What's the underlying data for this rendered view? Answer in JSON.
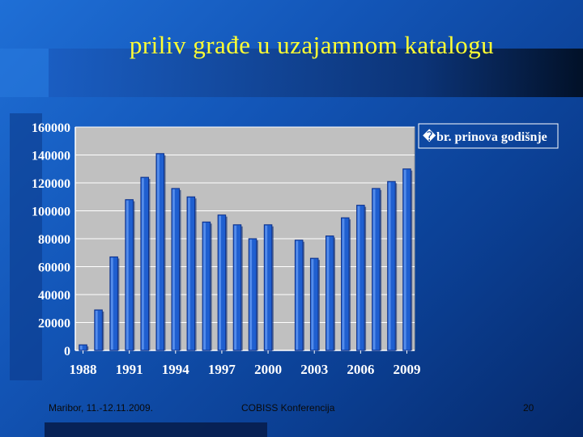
{
  "slide": {
    "title": "priliv građe u uzajamnom katalogu",
    "footer_left": "Maribor, 11.-12.11.2009.",
    "footer_center": "COBISS Konferencija",
    "footer_right": "20"
  },
  "colors": {
    "plot_background": "#c0c0c0",
    "bar_fill": "#1f5fd0",
    "bar_edge": "#0b2f8a",
    "gridline": "#ffffff",
    "axis_text": "#ffffff"
  },
  "chart_data": {
    "type": "bar",
    "title": "",
    "xlabel": "",
    "ylabel": "",
    "categories": [
      "1988",
      "1989",
      "1990",
      "1991",
      "1992",
      "1993",
      "1994",
      "1995",
      "1996",
      "1997",
      "1998",
      "1999",
      "2000",
      "2001",
      "2002",
      "2003",
      "2004",
      "2005",
      "2006",
      "2007",
      "2008",
      "2009"
    ],
    "series": [
      {
        "name": "br. prinova godišnje",
        "values": [
          4000,
          29000,
          67000,
          108000,
          124000,
          141000,
          116000,
          110000,
          92000,
          97000,
          90000,
          80000,
          90000,
          0,
          79000,
          66000,
          82000,
          95000,
          104000,
          116000,
          121000,
          130000
        ]
      }
    ],
    "ylim": [
      0,
      160000
    ],
    "yticks": [
      "0",
      "20000",
      "40000",
      "60000",
      "80000",
      "100000",
      "120000",
      "140000",
      "160000"
    ],
    "xtick_labels": [
      "1988",
      "1991",
      "1994",
      "1997",
      "2000",
      "2003",
      "2006",
      "2009"
    ],
    "grid": true,
    "legend_position": "top-right",
    "legend_marker": "�"
  }
}
